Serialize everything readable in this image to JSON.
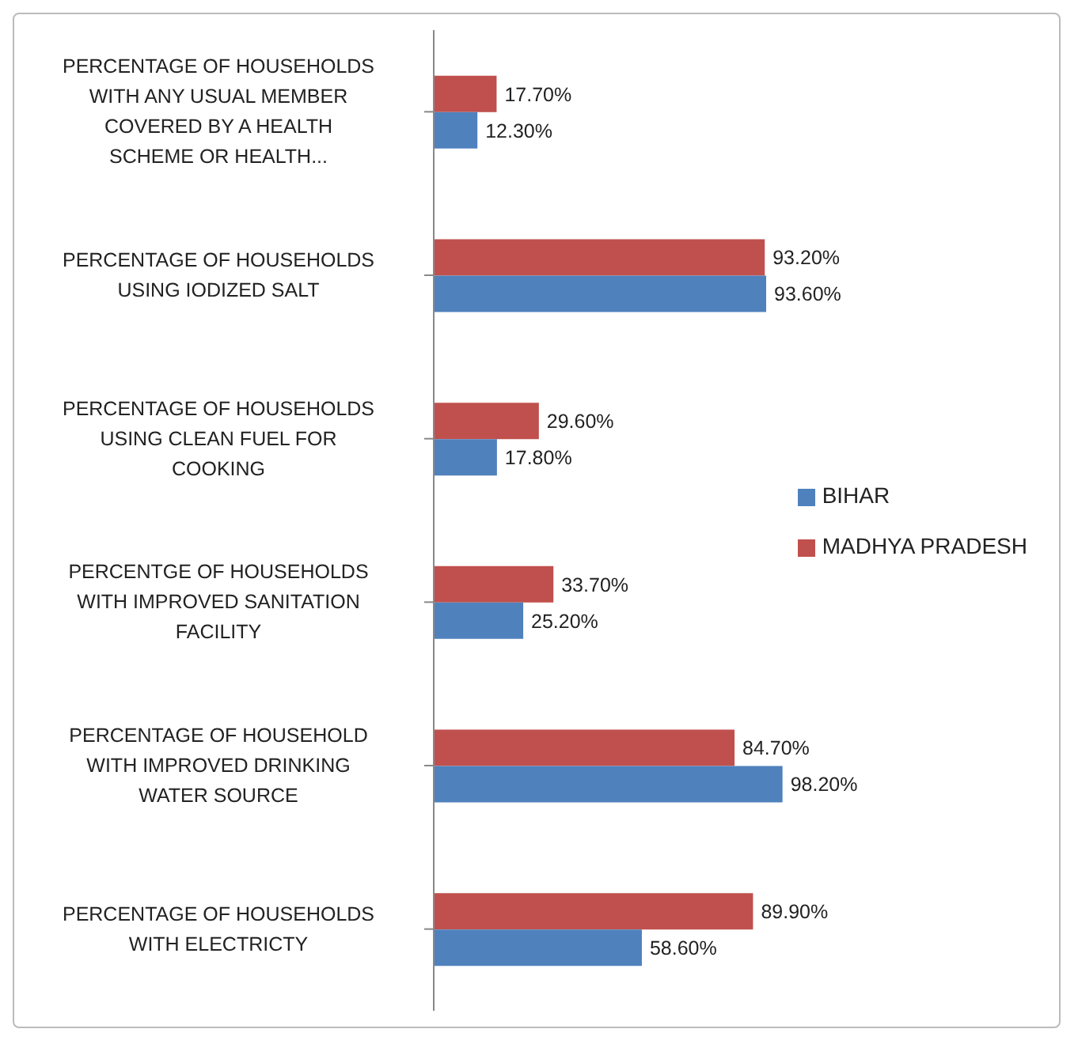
{
  "chart_data": {
    "type": "bar",
    "orientation": "horizontal",
    "categories": [
      "PERCENTAGE OF HOUSEHOLDS WITH ANY USUAL MEMBER COVERED BY A HEALTH SCHEME OR HEALTH...",
      "PERCENTAGE OF HOUSEHOLDS USING IODIZED SALT",
      "PERCENTAGE OF HOUSEHOLDS USING CLEAN FUEL FOR COOKING",
      "PERCENTGE OF HOUSEHOLDS WITH IMPROVED SANITATION FACILITY",
      "PERCENTAGE OF HOUSEHOLD WITH IMPROVED DRINKING WATER SOURCE",
      "PERCENTAGE OF HOUSEHOLDS WITH ELECTRICTY"
    ],
    "series": [
      {
        "name": "MADHYA PRADESH",
        "color": "#c0504d",
        "values": [
          17.7,
          93.2,
          29.6,
          33.7,
          84.7,
          89.9
        ],
        "value_labels": [
          "17.70%",
          "93.20%",
          "29.60%",
          "33.70%",
          "84.70%",
          "89.90%"
        ]
      },
      {
        "name": "BIHAR",
        "color": "#4f81bd",
        "values": [
          12.3,
          93.6,
          17.8,
          25.2,
          98.2,
          58.6
        ],
        "value_labels": [
          "12.30%",
          "93.60%",
          "17.80%",
          "25.20%",
          "98.20%",
          "58.60%"
        ]
      }
    ],
    "legend": "right"
  }
}
